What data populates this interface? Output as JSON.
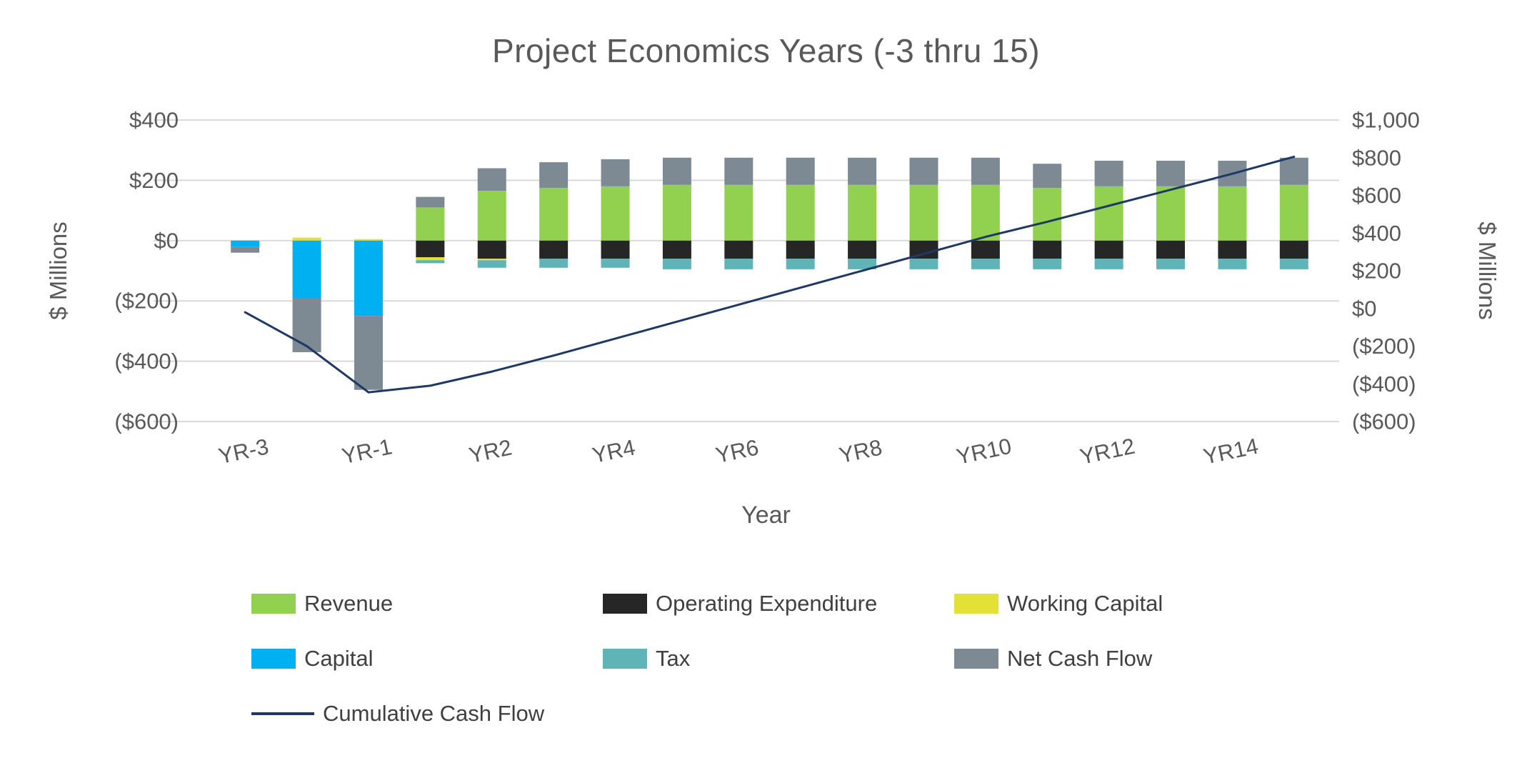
{
  "chart_data": {
    "type": "bar",
    "subtype": "stacked-bars-with-cumulative-line",
    "title": "Project Economics Years (-3 thru 15)",
    "xlabel": "Year",
    "ylabel_left": "$ Millions",
    "ylabel_right": "$ Millions",
    "grid": "horizontal",
    "legend_position": "bottom",
    "categories": [
      "YR-3",
      "YR-2",
      "YR-1",
      "YR1",
      "YR2",
      "YR3",
      "YR4",
      "YR5",
      "YR6",
      "YR7",
      "YR8",
      "YR9",
      "YR10",
      "YR11",
      "YR12",
      "YR13",
      "YR14",
      "YR15"
    ],
    "x_tick_labels_shown": [
      "YR-3",
      "YR-1",
      "YR2",
      "YR4",
      "YR6",
      "YR8",
      "YR10",
      "YR12",
      "YR14"
    ],
    "left_axis": {
      "min": -600,
      "max": 400,
      "tick_interval": 200,
      "ticks": [
        {
          "v": 400,
          "label": "$400"
        },
        {
          "v": 200,
          "label": "$200"
        },
        {
          "v": 0,
          "label": "$0"
        },
        {
          "v": -200,
          "label": "($200)"
        },
        {
          "v": -400,
          "label": "($400)"
        },
        {
          "v": -600,
          "label": "($600)"
        }
      ]
    },
    "right_axis": {
      "min": -600,
      "max": 1000,
      "tick_interval": 200,
      "ticks": [
        {
          "v": 1000,
          "label": "$1,000"
        },
        {
          "v": 800,
          "label": "$800"
        },
        {
          "v": 600,
          "label": "$600"
        },
        {
          "v": 400,
          "label": "$400"
        },
        {
          "v": 200,
          "label": "$200"
        },
        {
          "v": 0,
          "label": "$0"
        },
        {
          "v": -200,
          "label": "($200)"
        },
        {
          "v": -400,
          "label": "($400)"
        },
        {
          "v": -600,
          "label": "($600)"
        }
      ]
    },
    "series": [
      {
        "name": "Revenue",
        "type": "bar",
        "axis": "left",
        "color": "#92d050",
        "values": [
          0,
          0,
          0,
          110,
          165,
          175,
          180,
          185,
          185,
          185,
          185,
          185,
          185,
          175,
          180,
          180,
          180,
          185
        ]
      },
      {
        "name": "Operating Expenditure",
        "type": "bar",
        "axis": "left",
        "color": "#262626",
        "values": [
          0,
          0,
          0,
          -55,
          -60,
          -60,
          -60,
          -60,
          -60,
          -60,
          -60,
          -60,
          -60,
          -60,
          -60,
          -60,
          -60,
          -60
        ]
      },
      {
        "name": "Working Capital",
        "type": "bar",
        "axis": "left",
        "color": "#e3e135",
        "values": [
          0,
          10,
          5,
          -10,
          -5,
          0,
          0,
          0,
          0,
          0,
          0,
          0,
          0,
          0,
          0,
          0,
          0,
          0
        ]
      },
      {
        "name": "Capital",
        "type": "bar",
        "axis": "left",
        "color": "#00b0f0",
        "values": [
          -20,
          -190,
          -250,
          0,
          0,
          0,
          0,
          0,
          0,
          0,
          0,
          0,
          0,
          0,
          0,
          0,
          0,
          0
        ]
      },
      {
        "name": "Tax",
        "type": "bar",
        "axis": "left",
        "color": "#5fb4b8",
        "values": [
          0,
          0,
          0,
          -10,
          -25,
          -30,
          -30,
          -35,
          -35,
          -35,
          -35,
          -35,
          -35,
          -35,
          -35,
          -35,
          -35,
          -35
        ]
      },
      {
        "name": "Net Cash Flow",
        "type": "bar",
        "axis": "left",
        "color": "#7d8a94",
        "values": [
          -20,
          -180,
          -245,
          35,
          75,
          85,
          90,
          90,
          90,
          90,
          90,
          90,
          90,
          80,
          85,
          85,
          85,
          90
        ]
      },
      {
        "name": "Cumulative Cash Flow",
        "type": "line",
        "axis": "right",
        "color": "#1f3864",
        "values": [
          -20,
          -200,
          -445,
          -410,
          -335,
          -250,
          -160,
          -70,
          20,
          110,
          200,
          290,
          380,
          460,
          545,
          630,
          715,
          805
        ]
      }
    ]
  },
  "colors": {
    "grid": "#d9d9d9",
    "axis_text": "#595959",
    "legend_text": "#404040",
    "background": "#ffffff"
  }
}
